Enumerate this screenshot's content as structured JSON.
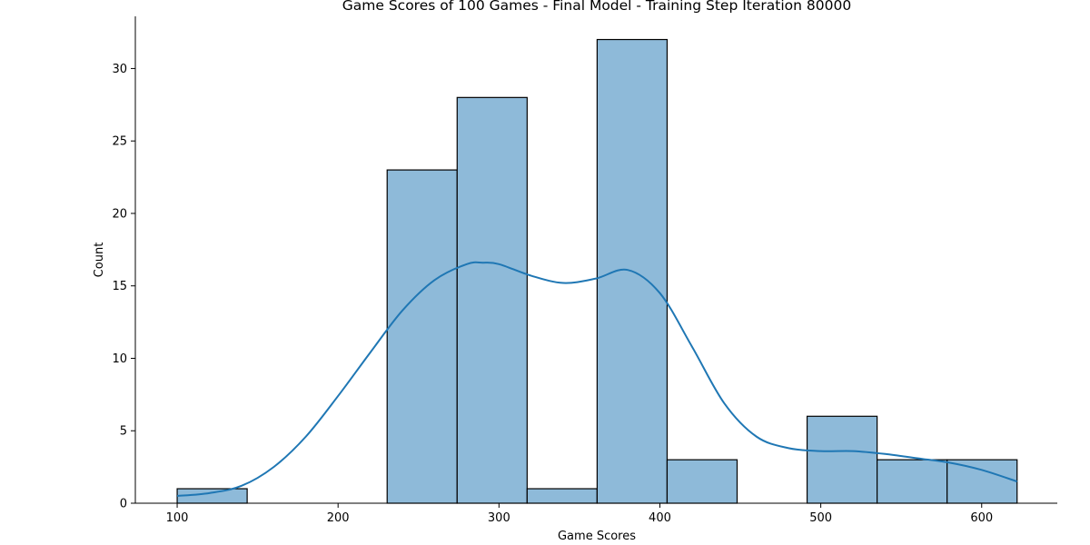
{
  "chart_data": {
    "type": "bar",
    "title": "Game Scores of 100 Games - Final Model - Training Step Iteration 80000",
    "xlabel": "Game Scores",
    "ylabel": "Count",
    "xlim": [
      74,
      647
    ],
    "ylim": [
      0,
      33.6
    ],
    "x_ticks": [
      100,
      200,
      300,
      400,
      500,
      600
    ],
    "y_ticks": [
      0,
      5,
      10,
      15,
      20,
      25,
      30
    ],
    "bins": [
      {
        "x0": 100,
        "x1": 143.5,
        "count": 1
      },
      {
        "x0": 143.5,
        "x1": 187,
        "count": 0
      },
      {
        "x0": 187,
        "x1": 230.5,
        "count": 0
      },
      {
        "x0": 230.5,
        "x1": 274,
        "count": 23
      },
      {
        "x0": 274,
        "x1": 317.5,
        "count": 28
      },
      {
        "x0": 317.5,
        "x1": 361,
        "count": 1
      },
      {
        "x0": 361,
        "x1": 404.5,
        "count": 32
      },
      {
        "x0": 404.5,
        "x1": 448,
        "count": 3
      },
      {
        "x0": 448,
        "x1": 491.5,
        "count": 0
      },
      {
        "x0": 491.5,
        "x1": 535,
        "count": 6
      },
      {
        "x0": 535,
        "x1": 578.5,
        "count": 3
      },
      {
        "x0": 578.5,
        "x1": 622,
        "count": 3
      }
    ],
    "kde": {
      "x": [
        100,
        120,
        140,
        160,
        180,
        200,
        220,
        240,
        260,
        280,
        290,
        300,
        320,
        340,
        360,
        380,
        400,
        420,
        440,
        460,
        480,
        500,
        520,
        540,
        560,
        580,
        600,
        622
      ],
      "y": [
        0.5,
        0.7,
        1.2,
        2.5,
        4.6,
        7.4,
        10.4,
        13.3,
        15.4,
        16.5,
        16.6,
        16.5,
        15.7,
        15.2,
        15.5,
        16.1,
        14.5,
        10.8,
        6.9,
        4.6,
        3.8,
        3.6,
        3.6,
        3.4,
        3.1,
        2.8,
        2.3,
        1.5
      ]
    },
    "grid": false,
    "colors": {
      "bar_fill": "#8ebad9",
      "bar_edge": "#000000",
      "kde_line": "#1f77b4"
    }
  }
}
